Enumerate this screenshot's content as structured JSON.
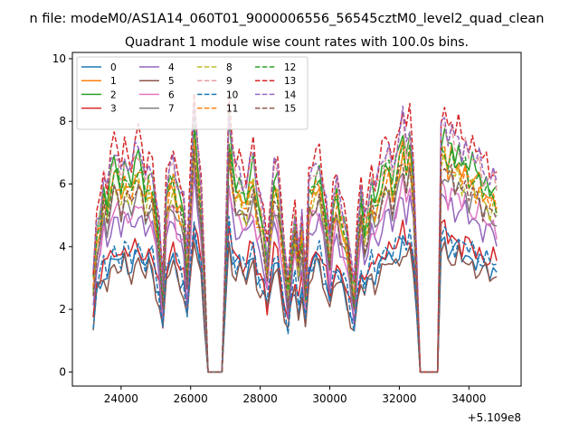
{
  "figure": {
    "suptitle": "n file: modeM0/AS1A14_060T01_9000006556_56545cztM0_level2_quad_clean"
  },
  "chart_data": {
    "type": "line",
    "title": "Quadrant 1 module wise count rates with 100.0s bins.",
    "xlabel": "",
    "ylabel": "",
    "x_offset_label": "+5.109e8",
    "x_ticks": [
      24000,
      26000,
      28000,
      30000,
      32000,
      34000
    ],
    "x_tick_labels": [
      "24000",
      "26000",
      "28000",
      "30000",
      "32000",
      "34000"
    ],
    "y_ticks": [
      0,
      2,
      4,
      6,
      8,
      10
    ],
    "y_tick_labels": [
      "0",
      "2",
      "4",
      "6",
      "8",
      "10"
    ],
    "xlim": [
      22600,
      35500
    ],
    "ylim": [
      -0.45,
      10.2
    ],
    "grid": false,
    "legend": {
      "placement": "top-left",
      "columns": 4
    },
    "x": [
      23200,
      23300,
      23400,
      23500,
      23600,
      23700,
      23800,
      23900,
      24000,
      24100,
      24200,
      24300,
      24400,
      24500,
      24600,
      24700,
      24800,
      24900,
      25000,
      25100,
      25200,
      25300,
      25400,
      25500,
      25600,
      25700,
      25800,
      25900,
      26000,
      26100,
      26200,
      26300,
      26400,
      26500,
      26600,
      26700,
      26800,
      26900,
      27000,
      27100,
      27200,
      27300,
      27400,
      27500,
      27600,
      27700,
      27800,
      27900,
      28000,
      28100,
      28200,
      28300,
      28400,
      28500,
      28600,
      28700,
      28800,
      28900,
      29000,
      29100,
      29200,
      29300,
      29400,
      29500,
      29600,
      29700,
      29800,
      29900,
      30000,
      30100,
      30200,
      30300,
      30400,
      30500,
      30600,
      30700,
      30800,
      30900,
      31000,
      31100,
      31200,
      31300,
      31400,
      31500,
      31600,
      31700,
      31800,
      31900,
      32000,
      32100,
      32200,
      32300,
      32400,
      32500,
      32600,
      32700,
      32800,
      32900,
      33000,
      33100,
      33200,
      33300,
      33400,
      33500,
      33600,
      33700,
      33800,
      33900,
      34000,
      34100,
      34200,
      34300,
      34400,
      34500,
      34600,
      34700,
      34800
    ],
    "base_profile": [
      0.35,
      0.55,
      0.6,
      0.72,
      0.65,
      0.75,
      0.8,
      0.78,
      0.72,
      0.8,
      0.76,
      0.73,
      0.8,
      0.82,
      0.78,
      0.7,
      0.76,
      0.74,
      0.62,
      0.52,
      0.3,
      0.68,
      0.75,
      0.78,
      0.7,
      0.66,
      0.62,
      0.4,
      0.7,
      0.98,
      0.82,
      0.68,
      0.36,
      0,
      0,
      0,
      0,
      0,
      0.45,
      0.95,
      0.8,
      0.72,
      0.74,
      0.7,
      0.68,
      0.76,
      0.8,
      0.66,
      0.62,
      0.56,
      0.42,
      0.62,
      0.76,
      0.74,
      0.58,
      0.44,
      0.32,
      0.48,
      0.6,
      0.44,
      0.56,
      0.32,
      0.7,
      0.72,
      0.76,
      0.78,
      0.68,
      0.6,
      0.46,
      0.64,
      0.7,
      0.62,
      0.58,
      0.52,
      0.4,
      0.3,
      0.52,
      0.68,
      0.56,
      0.62,
      0.72,
      0.66,
      0.7,
      0.76,
      0.8,
      0.82,
      0.74,
      0.8,
      0.86,
      0.92,
      0.82,
      0.9,
      0.76,
      0.4,
      0,
      0,
      0,
      0,
      0,
      0,
      0.9,
      0.92,
      0.84,
      0.88,
      0.82,
      0.86,
      0.8,
      0.84,
      0.78,
      0.8,
      0.76,
      0.78,
      0.72,
      0.74,
      0.7,
      0.72,
      0.68
    ],
    "series": [
      {
        "name": "0",
        "color": "#1f77b4",
        "dash": false,
        "scale": 4.6
      },
      {
        "name": "1",
        "color": "#ff7f0e",
        "dash": false,
        "scale": 7.8
      },
      {
        "name": "2",
        "color": "#2ca02c",
        "dash": false,
        "scale": 8.3
      },
      {
        "name": "3",
        "color": "#d62728",
        "dash": false,
        "scale": 5.0
      },
      {
        "name": "4",
        "color": "#9467bd",
        "dash": false,
        "scale": 6.2
      },
      {
        "name": "5",
        "color": "#8c564b",
        "dash": false,
        "scale": 4.3
      },
      {
        "name": "6",
        "color": "#e377c2",
        "dash": false,
        "scale": 6.6
      },
      {
        "name": "7",
        "color": "#7f7f7f",
        "dash": false,
        "scale": 7.0
      },
      {
        "name": "8",
        "color": "#bcbd22",
        "dash": true,
        "scale": 7.4
      },
      {
        "name": "9",
        "color": "#e89ca4",
        "dash": true,
        "scale": 8.6
      },
      {
        "name": "10",
        "color": "#1f77b4",
        "dash": true,
        "scale": 4.9
      },
      {
        "name": "11",
        "color": "#ff7f0e",
        "dash": true,
        "scale": 7.6
      },
      {
        "name": "12",
        "color": "#2ca02c",
        "dash": true,
        "scale": 7.9
      },
      {
        "name": "13",
        "color": "#d62728",
        "dash": true,
        "scale": 9.2
      },
      {
        "name": "14",
        "color": "#9467bd",
        "dash": true,
        "scale": 8.8
      },
      {
        "name": "15",
        "color": "#8c564b",
        "dash": true,
        "scale": 7.2
      }
    ]
  }
}
